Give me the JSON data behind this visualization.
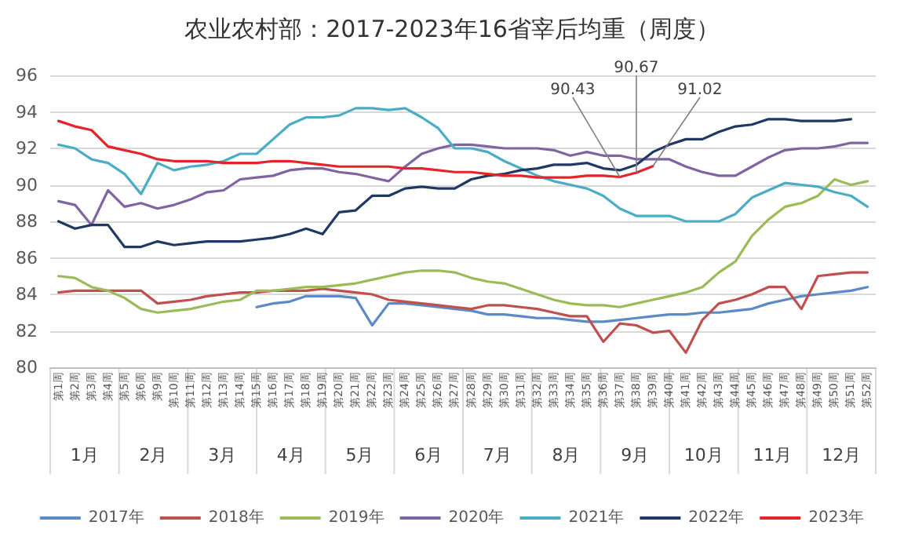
{
  "chart_data": {
    "type": "line",
    "title": "农业农村部：2017-2023年16省宰后均重（周度）",
    "categories": [
      "第1周",
      "第2周",
      "第3周",
      "第4周",
      "第5周",
      "第6周",
      "第9周",
      "第10周",
      "第11周",
      "第12周",
      "第13周",
      "第14周",
      "第15周",
      "第16周",
      "第17周",
      "第18周",
      "第19周",
      "第20周",
      "第21周",
      "第22周",
      "第23周",
      "第24周",
      "第25周",
      "第26周",
      "第27周",
      "第28周",
      "第29周",
      "第30周",
      "第31周",
      "第32周",
      "第33周",
      "第34周",
      "第35周",
      "第36周",
      "第37周",
      "第38周",
      "第39周",
      "第40周",
      "第41周",
      "第42周",
      "第43周",
      "第44周",
      "第45周",
      "第46周",
      "第47周",
      "第48周",
      "第49周",
      "第50周",
      "第51周",
      "第52周"
    ],
    "series": [
      {
        "name": "2017年",
        "color": "#5b8ac6",
        "values": [
          null,
          null,
          null,
          null,
          null,
          null,
          null,
          null,
          null,
          null,
          null,
          null,
          83.3,
          83.5,
          83.6,
          83.9,
          83.9,
          83.9,
          83.8,
          82.3,
          83.5,
          83.5,
          83.4,
          83.3,
          83.2,
          83.1,
          82.9,
          82.9,
          82.8,
          82.7,
          82.7,
          82.6,
          82.5,
          82.5,
          82.6,
          82.7,
          82.8,
          82.9,
          82.9,
          83.0,
          83.0,
          83.1,
          83.2,
          83.5,
          83.7,
          83.9,
          84.0,
          84.1,
          84.2,
          84.4
        ]
      },
      {
        "name": "2018年",
        "color": "#c0504d",
        "values": [
          84.1,
          84.2,
          84.2,
          84.2,
          84.2,
          84.2,
          83.5,
          83.6,
          83.7,
          83.9,
          84.0,
          84.1,
          84.1,
          84.2,
          84.2,
          84.2,
          84.3,
          84.2,
          84.1,
          84.0,
          83.7,
          83.6,
          83.5,
          83.4,
          83.3,
          83.2,
          83.4,
          83.4,
          83.3,
          83.2,
          83.0,
          82.8,
          82.8,
          81.4,
          82.4,
          82.3,
          81.9,
          82.0,
          80.8,
          82.6,
          83.5,
          83.7,
          84.0,
          84.4,
          84.4,
          83.2,
          85.0,
          85.1,
          85.2,
          85.2
        ]
      },
      {
        "name": "2019年",
        "color": "#9bbb59",
        "values": [
          85.0,
          84.9,
          84.4,
          84.2,
          83.8,
          83.2,
          83.0,
          83.1,
          83.2,
          83.4,
          83.6,
          83.7,
          84.2,
          84.2,
          84.3,
          84.4,
          84.4,
          84.5,
          84.6,
          84.8,
          85.0,
          85.2,
          85.3,
          85.3,
          85.2,
          84.9,
          84.7,
          84.6,
          84.3,
          84.0,
          83.7,
          83.5,
          83.4,
          83.4,
          83.3,
          83.5,
          83.7,
          83.9,
          84.1,
          84.4,
          85.2,
          85.8,
          87.2,
          88.1,
          88.8,
          89.0,
          89.4,
          90.3,
          90.0,
          90.2
        ]
      },
      {
        "name": "2020年",
        "color": "#8064a2",
        "values": [
          89.1,
          88.9,
          87.8,
          89.7,
          88.8,
          89.0,
          88.7,
          88.9,
          89.2,
          89.6,
          89.7,
          90.3,
          90.4,
          90.5,
          90.8,
          90.9,
          90.9,
          90.7,
          90.6,
          90.4,
          90.2,
          91.0,
          91.7,
          92.0,
          92.2,
          92.2,
          92.1,
          92.0,
          92.0,
          92.0,
          91.9,
          91.6,
          91.8,
          91.6,
          91.6,
          91.4,
          91.4,
          91.4,
          91.0,
          90.7,
          90.5,
          90.5,
          91.0,
          91.5,
          91.9,
          92.0,
          92.0,
          92.1,
          92.3,
          92.3
        ]
      },
      {
        "name": "2021年",
        "color": "#4bacc6",
        "values": [
          92.2,
          92.0,
          91.4,
          91.2,
          90.6,
          89.5,
          91.2,
          90.8,
          91.0,
          91.1,
          91.3,
          91.7,
          91.7,
          92.5,
          93.3,
          93.7,
          93.7,
          93.8,
          94.2,
          94.2,
          94.1,
          94.2,
          93.7,
          93.1,
          92.0,
          92.0,
          91.8,
          91.3,
          90.9,
          90.5,
          90.2,
          90.0,
          89.8,
          89.4,
          88.7,
          88.3,
          88.3,
          88.3,
          88.0,
          88.0,
          88.0,
          88.4,
          89.3,
          89.7,
          90.1,
          90.0,
          89.9,
          89.6,
          89.4,
          88.8
        ]
      },
      {
        "name": "2022年",
        "color": "#1f3864",
        "values": [
          88.0,
          87.6,
          87.8,
          87.8,
          86.6,
          86.6,
          86.9,
          86.7,
          86.8,
          86.9,
          86.9,
          86.9,
          87.0,
          87.1,
          87.3,
          87.6,
          87.3,
          88.5,
          88.6,
          89.4,
          89.4,
          89.8,
          89.9,
          89.8,
          89.8,
          90.3,
          90.5,
          90.6,
          90.8,
          90.9,
          91.1,
          91.1,
          91.2,
          90.9,
          90.8,
          91.1,
          91.8,
          92.2,
          92.5,
          92.5,
          92.9,
          93.2,
          93.3,
          93.6,
          93.6,
          93.5,
          93.5,
          93.5,
          93.6,
          null
        ]
      },
      {
        "name": "2023年",
        "color": "#e3242b",
        "values": [
          93.5,
          93.2,
          93.0,
          92.1,
          91.9,
          91.7,
          91.4,
          91.3,
          91.3,
          91.3,
          91.2,
          91.2,
          91.2,
          91.3,
          91.3,
          91.2,
          91.1,
          91.0,
          91.0,
          91.0,
          91.0,
          90.9,
          90.9,
          90.8,
          90.7,
          90.7,
          90.6,
          90.5,
          90.5,
          90.4,
          90.4,
          90.4,
          90.5,
          90.5,
          90.43,
          90.67,
          91.02,
          null,
          null,
          null,
          null,
          null,
          null,
          null,
          null,
          null,
          null,
          null,
          null,
          null
        ]
      }
    ],
    "ylim": [
      80,
      96
    ],
    "yticks": [
      80,
      82,
      84,
      86,
      88,
      90,
      92,
      94,
      96
    ],
    "grid": "y",
    "legend": "bottom",
    "marker": "none",
    "line_style": "solid",
    "annotations": [
      {
        "text": "90.43",
        "x": "第37周",
        "y": 90.43
      },
      {
        "text": "90.67",
        "x": "第38周",
        "y": 90.67
      },
      {
        "text": "91.02",
        "x": "第39周",
        "y": 91.02
      },
      "1月",
      "2月",
      "3月",
      "4月",
      "5月",
      "6月",
      "7月",
      "8月",
      "9月",
      "10月",
      "11月",
      "12月"
    ]
  }
}
